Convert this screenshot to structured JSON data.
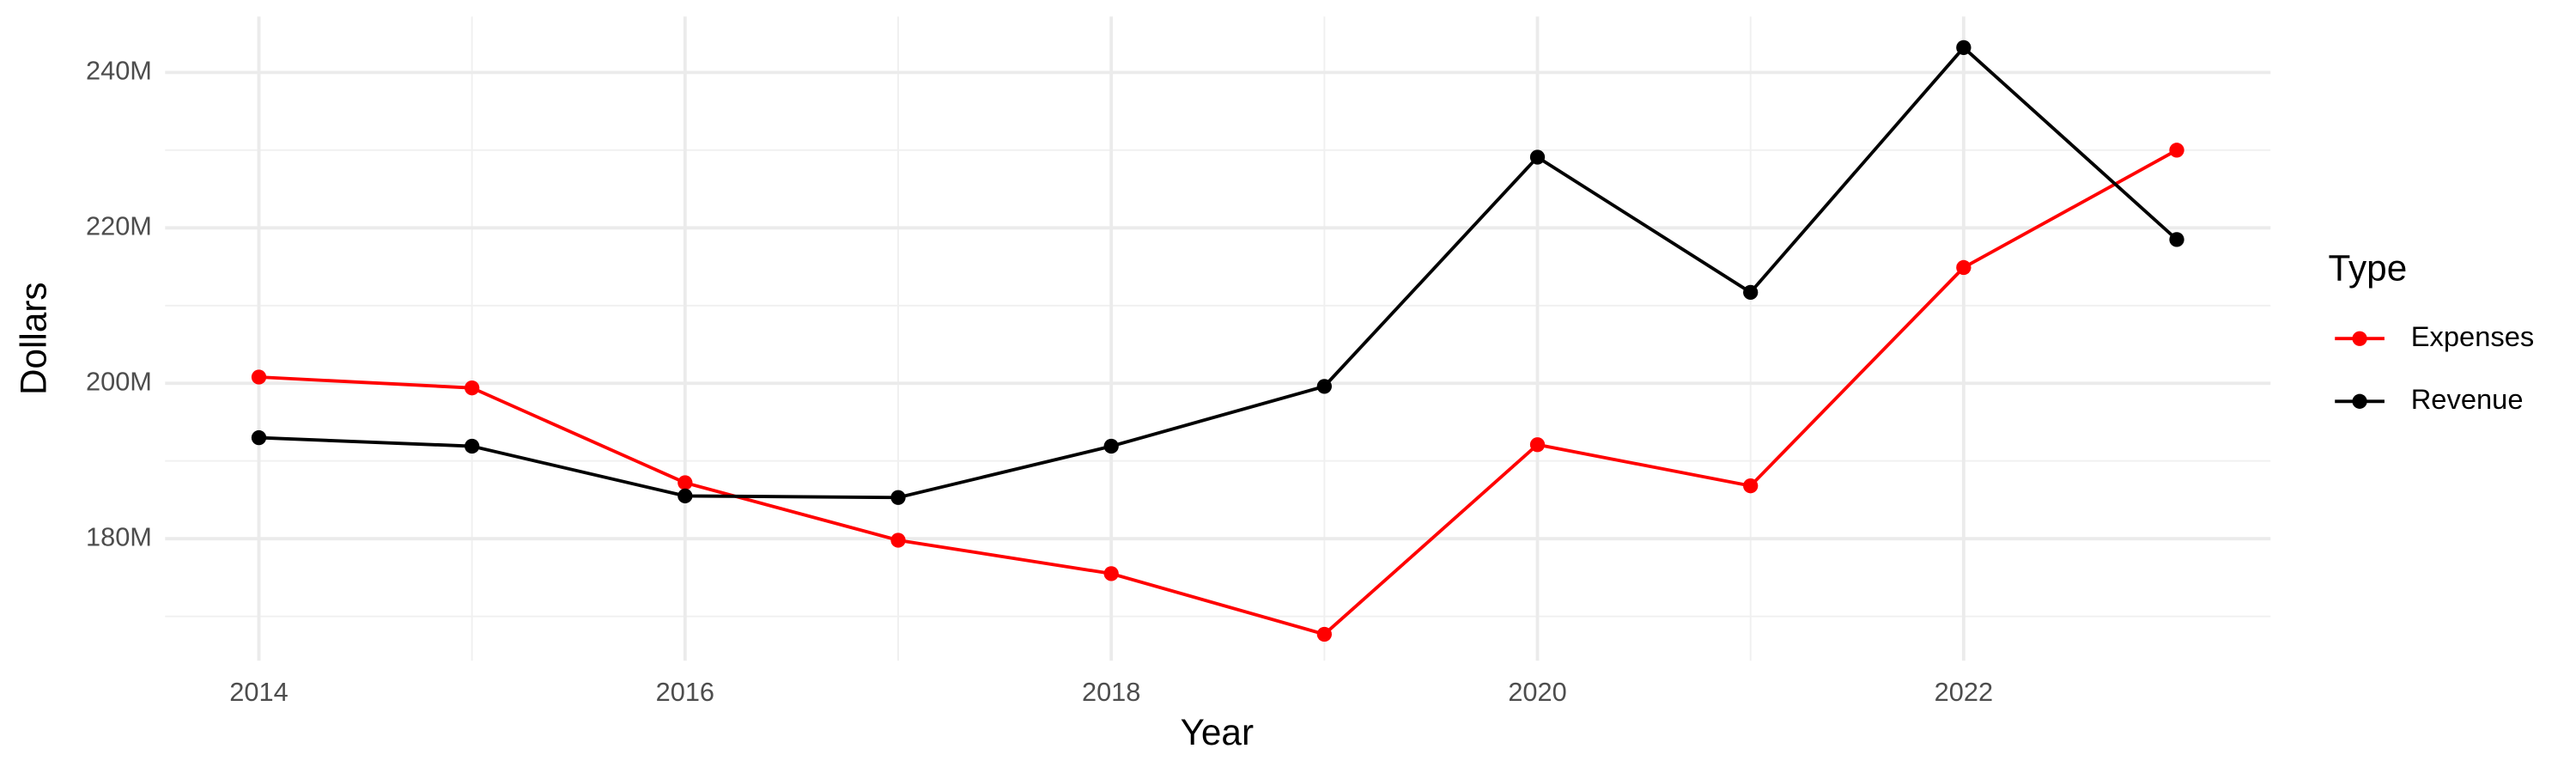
{
  "chart_data": {
    "type": "line",
    "x_label": "Year",
    "y_label": "Dollars",
    "legend_title": "Type",
    "legend_position": "right",
    "grid": true,
    "x": [
      2014,
      2015,
      2016,
      2017,
      2018,
      2019,
      2020,
      2021,
      2022,
      2023
    ],
    "series": [
      {
        "name": "Expenses",
        "color": "#ff0000",
        "values": [
          200800000,
          199400000,
          187200000,
          179800000,
          175500000,
          167700000,
          192100000,
          186800000,
          214900000,
          230000000
        ]
      },
      {
        "name": "Revenue",
        "color": "#000000",
        "values": [
          193000000,
          191900000,
          185500000,
          185300000,
          191900000,
          199600000,
          229100000,
          211700000,
          243200000,
          218500000
        ]
      }
    ],
    "xlim": [
      2013.56,
      2023.44
    ],
    "xticks": [
      2014,
      2016,
      2018,
      2020,
      2022
    ],
    "ylim": [
      164300000,
      247200000
    ],
    "yticks": [
      {
        "value": 180000000,
        "label": "180M"
      },
      {
        "value": 200000000,
        "label": "200M"
      },
      {
        "value": 220000000,
        "label": "220M"
      },
      {
        "value": 240000000,
        "label": "240M"
      }
    ]
  }
}
